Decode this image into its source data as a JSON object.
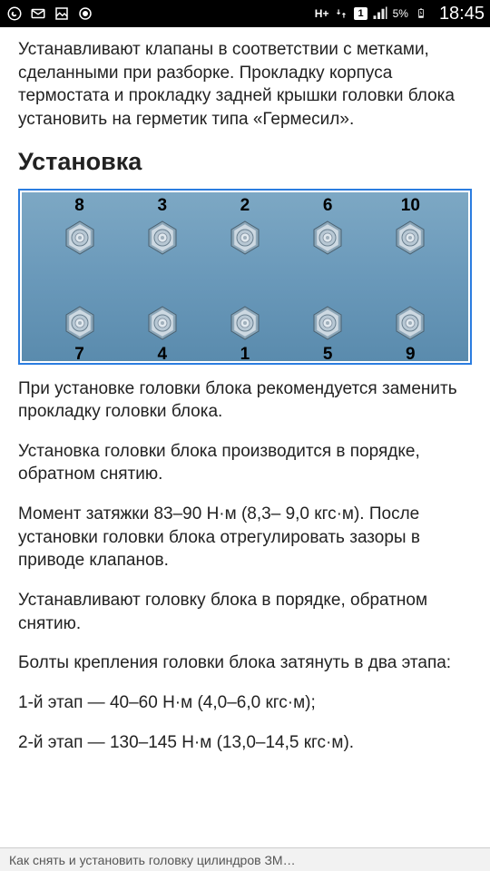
{
  "status": {
    "time": "18:45",
    "battery_pct": "5%",
    "sim_label": "1",
    "net_label": "H+"
  },
  "content": {
    "intro": "Устанавливают клапаны в соответствии с метками, сделанными при разборке. Прокладку корпуса термостата и прокладку задней крышки головки блока установить на герметик типа «Гермесил».",
    "heading": "Установка",
    "diagram": {
      "top_row": [
        8,
        3,
        2,
        6,
        10
      ],
      "bottom_row": [
        7,
        4,
        1,
        5,
        9
      ],
      "colors": {
        "border": "#2b7de0",
        "bg_top": "#7da8c4",
        "bg_bottom": "#5a8bad",
        "bolt_outer": "#8aa6b8",
        "bolt_inner": "#cdd9e2",
        "number": "#000000"
      }
    },
    "paragraphs": [
      "При установке головки блока рекомендуется заменить прокладку головки блока.",
      "Установка головки блока производится в порядке, обратном снятию.",
      "Момент затяжки 83–90 Н·м (8,3– 9,0 кгс·м). После установки головки блока отрегулировать зазоры в приводе клапанов.",
      "Устанавливают головку блока в порядке, обратном снятию.",
      "Болты крепления головки блока затянуть в два этапа:",
      "1-й этап — 40–60 Н·м (4,0–6,0 кгс·м);",
      "2-й этап — 130–145 Н·м (13,0–14,5 кгс·м)."
    ]
  },
  "nav_bottom": "Как снять и установить головку цилиндров ЗМ…"
}
